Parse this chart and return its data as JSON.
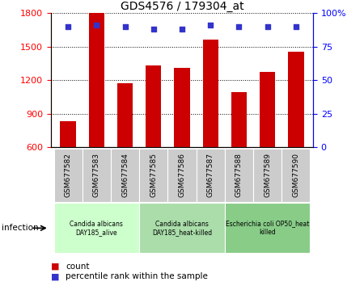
{
  "title": "GDS4576 / 179304_at",
  "samples": [
    "GSM677582",
    "GSM677583",
    "GSM677584",
    "GSM677585",
    "GSM677586",
    "GSM677587",
    "GSM677588",
    "GSM677589",
    "GSM677590"
  ],
  "counts": [
    830,
    1800,
    1175,
    1330,
    1310,
    1565,
    1090,
    1270,
    1450
  ],
  "percentile_ranks": [
    90,
    91,
    90,
    88,
    88,
    91,
    90,
    90,
    90
  ],
  "ylim_left": [
    600,
    1800
  ],
  "ylim_right": [
    0,
    100
  ],
  "yticks_left": [
    600,
    900,
    1200,
    1500,
    1800
  ],
  "yticks_right": [
    0,
    25,
    50,
    75,
    100
  ],
  "bar_color": "#cc0000",
  "dot_color": "#3333cc",
  "groups": [
    {
      "label": "Candida albicans\nDAY185_alive",
      "start": 0,
      "end": 3,
      "color": "#ccffcc"
    },
    {
      "label": "Candida albicans\nDAY185_heat-killed",
      "start": 3,
      "end": 6,
      "color": "#aaddaa"
    },
    {
      "label": "Escherichia coli OP50_heat\nkilled",
      "start": 6,
      "end": 9,
      "color": "#88cc88"
    }
  ],
  "infection_label": "infection",
  "legend_count_label": "count",
  "legend_percentile_label": "percentile rank within the sample",
  "bar_width": 0.55,
  "tick_label_bg": "#cccccc"
}
